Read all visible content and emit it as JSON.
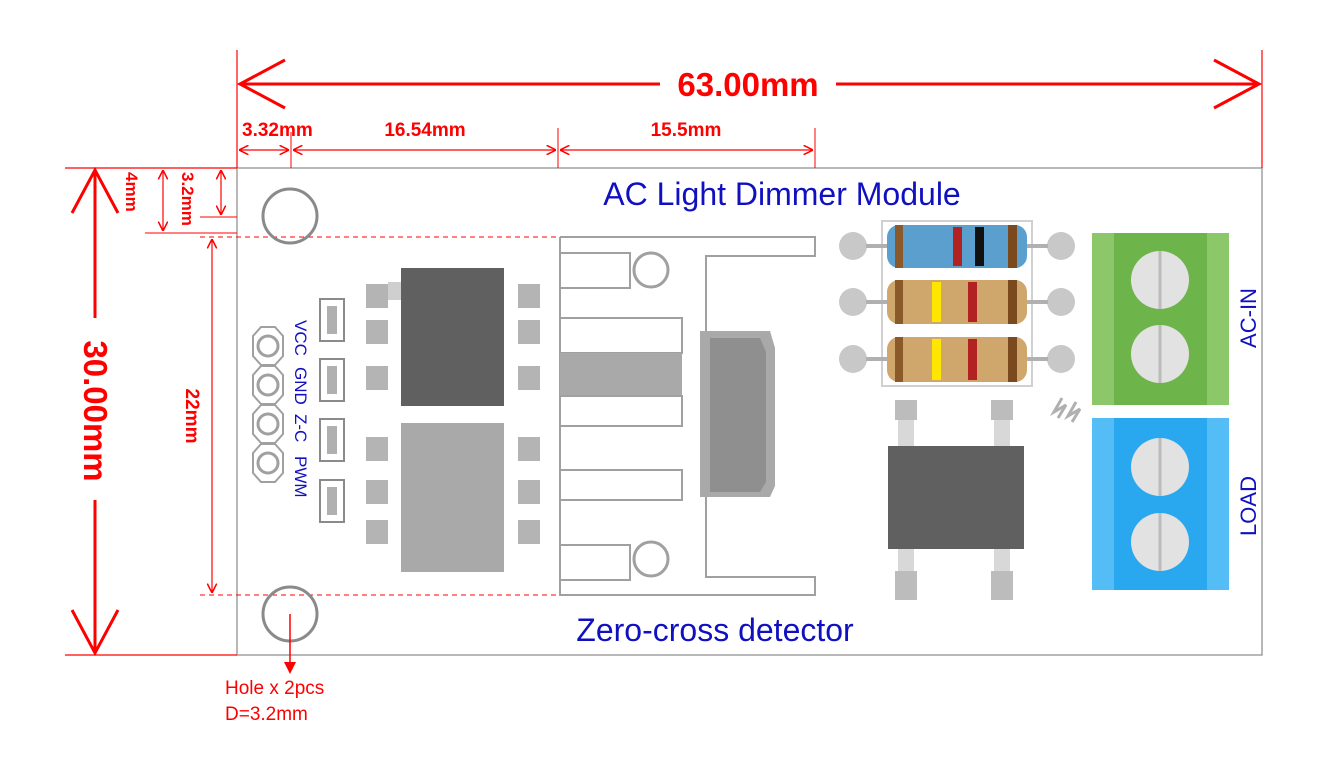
{
  "title": "AC Light Dimmer Module",
  "subtitle": "Zero-cross detector",
  "dimensions": {
    "width_total": "63.00mm",
    "height_total": "30.00mm",
    "hole_offset": "3.32mm",
    "ic_span": "16.54mm",
    "triac_span": "15.5mm",
    "top_offset_outer": "4mm",
    "top_offset_inner": "3.2mm",
    "hole_spacing": "22mm"
  },
  "pins": [
    "VCC",
    "GND",
    "Z-C",
    "PWM"
  ],
  "terminals": {
    "ac_in": "AC-IN",
    "load": "LOAD"
  },
  "hole_note": {
    "line1": "Hole x 2pcs",
    "line2": "D=3.2mm"
  },
  "colors": {
    "dimension": "#ff0000",
    "label": "#1010c0",
    "terminal_ac": "#6db44b",
    "terminal_load": "#2aa8ef",
    "ic_dark": "#606060",
    "ic_light": "#a9a9a9"
  }
}
